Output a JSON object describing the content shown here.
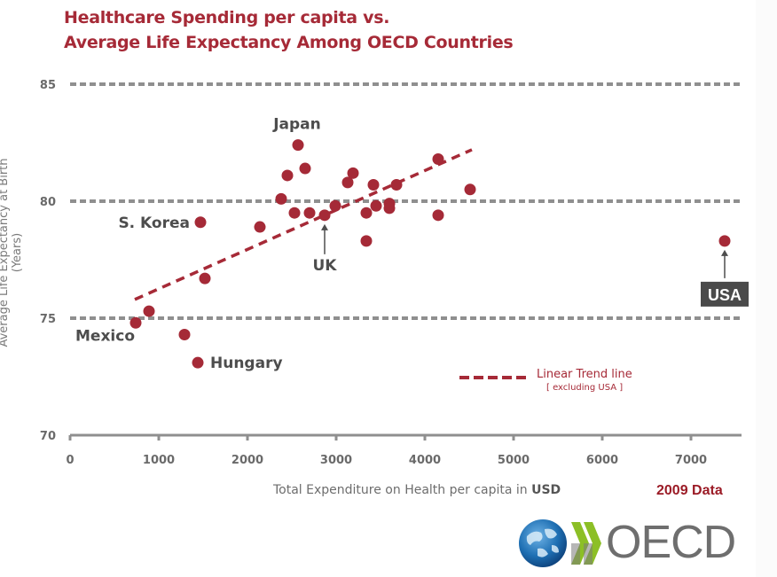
{
  "title_line1": "Healthcare Spending per capita vs.",
  "title_line2": "Average Life Expectancy Among OECD Countries",
  "data_year_label": "2009 Data",
  "logo_text": "OECD",
  "legend": {
    "label": "Linear Trend line",
    "sublabel": "[ excluding USA ]"
  },
  "colors": {
    "accent": "#a62a37",
    "point": "#a52a37",
    "grid": "#8f8f8f",
    "axis": "#8f8f8f",
    "label_box": "#4a4a4a"
  },
  "chart_data": {
    "type": "scatter",
    "title": "Healthcare Spending per capita vs. Average Life Expectancy Among OECD Countries",
    "xlabel": "Total Expenditure on Health per capita in USD",
    "ylabel": "Average Life Expectancy at Birth (Years)",
    "xlim": [
      0,
      7500
    ],
    "ylim": [
      70,
      85
    ],
    "xticks": [
      0,
      1000,
      2000,
      3000,
      4000,
      5000,
      6000,
      7000
    ],
    "yticks": [
      70,
      75,
      80,
      85
    ],
    "ygrid": [
      75,
      80,
      85
    ],
    "points": [
      {
        "x": 2570,
        "y": 82.4,
        "label": "Japan"
      },
      {
        "x": 2650,
        "y": 81.4
      },
      {
        "x": 2450,
        "y": 81.1
      },
      {
        "x": 2380,
        "y": 80.1
      },
      {
        "x": 2530,
        "y": 79.5
      },
      {
        "x": 2700,
        "y": 79.5
      },
      {
        "x": 2870,
        "y": 79.4,
        "label": "UK"
      },
      {
        "x": 2990,
        "y": 79.8
      },
      {
        "x": 3130,
        "y": 80.8
      },
      {
        "x": 3190,
        "y": 81.2
      },
      {
        "x": 2140,
        "y": 78.9
      },
      {
        "x": 3420,
        "y": 80.7
      },
      {
        "x": 3680,
        "y": 80.7
      },
      {
        "x": 3340,
        "y": 79.5
      },
      {
        "x": 3450,
        "y": 79.8
      },
      {
        "x": 3600,
        "y": 79.9
      },
      {
        "x": 3600,
        "y": 79.7
      },
      {
        "x": 3340,
        "y": 78.3
      },
      {
        "x": 4150,
        "y": 81.8
      },
      {
        "x": 4150,
        "y": 79.4
      },
      {
        "x": 4510,
        "y": 80.5
      },
      {
        "x": 1470,
        "y": 79.1,
        "label": "S. Korea"
      },
      {
        "x": 1520,
        "y": 76.7
      },
      {
        "x": 890,
        "y": 75.3
      },
      {
        "x": 740,
        "y": 74.8,
        "label": "Mexico"
      },
      {
        "x": 1290,
        "y": 74.3
      },
      {
        "x": 1440,
        "y": 73.1,
        "label": "Hungary"
      },
      {
        "x": 7380,
        "y": 78.3,
        "label": "USA"
      }
    ],
    "trendline": {
      "name": "Linear Trend line [ excluding USA ]",
      "x": [
        730,
        4530
      ],
      "y": [
        75.8,
        82.2
      ]
    },
    "annotations": [
      "Japan",
      "S. Korea",
      "UK",
      "Mexico",
      "Hungary",
      "USA"
    ],
    "legend_position": "bottom-right"
  }
}
